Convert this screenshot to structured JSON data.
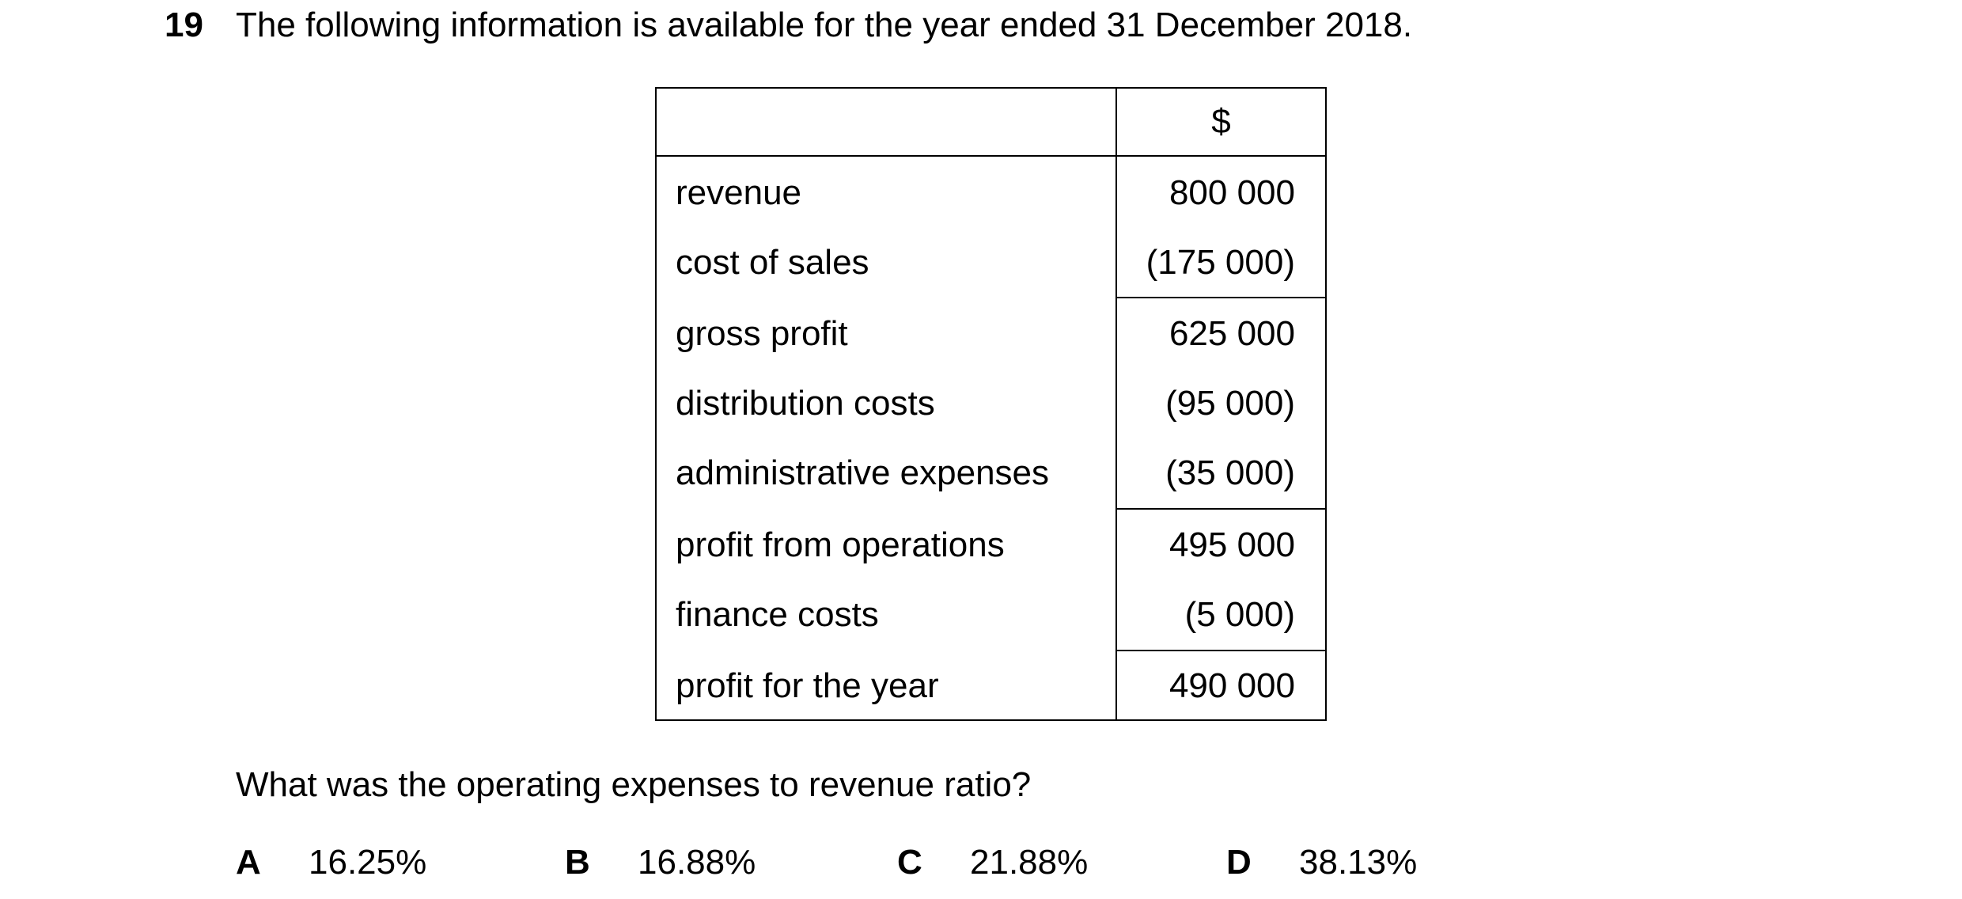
{
  "question": {
    "number": "19",
    "intro": "The following information is available for the year ended 31 December 2018.",
    "prompt": "What was the operating expenses to revenue ratio?"
  },
  "table": {
    "currency_header": "$",
    "rows": [
      {
        "label": "revenue",
        "amount": "800 000"
      },
      {
        "label": "cost of sales",
        "amount": "(175 000)"
      },
      {
        "label": "gross profit",
        "amount": "625 000"
      },
      {
        "label": "distribution costs",
        "amount": "(95 000)"
      },
      {
        "label": "administrative expenses",
        "amount": "(35 000)"
      },
      {
        "label": "profit from operations",
        "amount": "495 000"
      },
      {
        "label": "finance costs",
        "amount": "(5 000)"
      },
      {
        "label": "profit for the year",
        "amount": "490 000"
      }
    ]
  },
  "options": [
    {
      "letter": "A",
      "value": "16.25%"
    },
    {
      "letter": "B",
      "value": "16.88%"
    },
    {
      "letter": "C",
      "value": "21.88%"
    },
    {
      "letter": "D",
      "value": "38.13%"
    }
  ]
}
